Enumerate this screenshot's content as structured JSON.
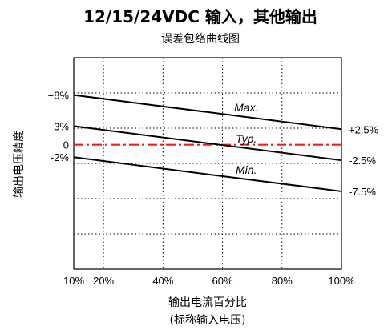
{
  "chart_data": {
    "type": "line",
    "title": "12/15/24VDC 输入，其他输出",
    "subtitle": "误差包络曲线图",
    "xlabel": "输出电流百分比",
    "xlabel_sub": "(标称输入电压)",
    "ylabel": "输出电压精度",
    "xlim": [
      10,
      100
    ],
    "ylim": [
      -20,
      14
    ],
    "grid": true,
    "x_ticks": [
      {
        "value": 10,
        "label": "10%"
      },
      {
        "value": 20,
        "label": "20%"
      },
      {
        "value": 40,
        "label": "40%"
      },
      {
        "value": 60,
        "label": "60%"
      },
      {
        "value": 80,
        "label": "80%"
      },
      {
        "value": 100,
        "label": "100%"
      }
    ],
    "y_ticks_left": [
      {
        "value": 8,
        "label": "+8%"
      },
      {
        "value": 3,
        "label": "+3%"
      },
      {
        "value": 0,
        "label": "0"
      },
      {
        "value": -2,
        "label": "-2%"
      }
    ],
    "y_ticks_right": [
      {
        "value": 2.5,
        "label": "+2.5%"
      },
      {
        "value": -2.5,
        "label": "-2.5%"
      },
      {
        "value": -7.5,
        "label": "-7.5%"
      }
    ],
    "reference_line": {
      "y": 0,
      "color": "#e8231e",
      "style": "dash-dot"
    },
    "series": [
      {
        "name": "Max.",
        "x": [
          10,
          100
        ],
        "y": [
          8,
          2.5
        ],
        "color": "#000000",
        "label_at_x": 68
      },
      {
        "name": "Typ.",
        "x": [
          10,
          100
        ],
        "y": [
          3,
          -2.5
        ],
        "color": "#000000",
        "label_at_x": 68
      },
      {
        "name": "Min.",
        "x": [
          10,
          100
        ],
        "y": [
          -2,
          -7.5
        ],
        "color": "#000000",
        "label_at_x": 68
      }
    ]
  }
}
